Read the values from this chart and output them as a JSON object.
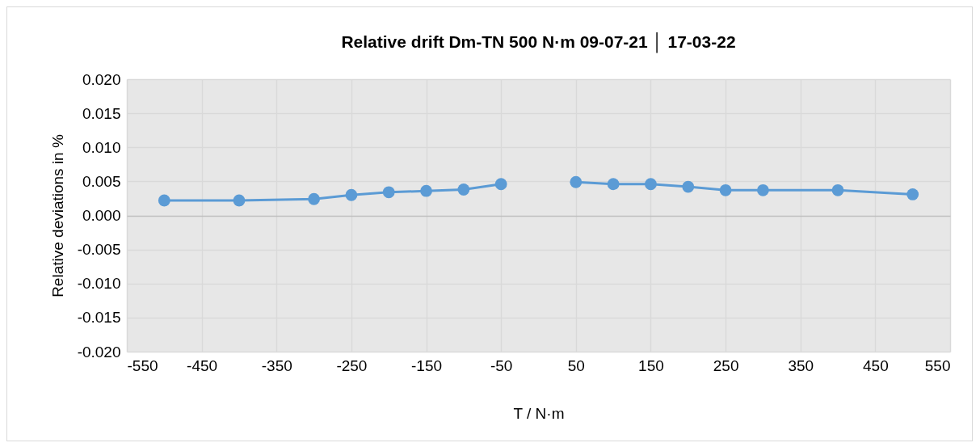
{
  "chart_data": {
    "type": "line",
    "title": "Relative drift Dm-TN 500 N·m 09-07-21 │ 17-03-22",
    "xlabel": "T / N·m",
    "ylabel": "Relative deviations in %",
    "x": [
      -500,
      -400,
      -300,
      -250,
      -200,
      -150,
      -100,
      -50,
      0,
      50,
      100,
      150,
      200,
      250,
      300,
      400,
      500
    ],
    "series": [
      {
        "color": "#5b9bd5",
        "values": [
          0.0022,
          0.0022,
          0.0024,
          0.003,
          0.0034,
          0.0036,
          0.0038,
          0.0046,
          null,
          0.0049,
          0.0046,
          0.0046,
          0.0042,
          0.0037,
          0.0037,
          0.0037,
          0.0031
        ]
      }
    ],
    "xlim": [
      -550,
      550
    ],
    "xticks": [
      -550,
      -450,
      -350,
      -250,
      -150,
      -50,
      50,
      150,
      250,
      350,
      450,
      550
    ],
    "ylim": [
      -0.02,
      0.02
    ],
    "yticks": [
      {
        "value": -0.02,
        "label": "-0.020"
      },
      -0.015,
      {
        "value": -0.01,
        "label": "-0.010"
      },
      -0.005,
      {
        "value": 0,
        "label": "0.000"
      },
      0.005,
      {
        "value": 0.01,
        "label": "0.010"
      },
      0.015,
      {
        "value": 0.02,
        "label": "0.020"
      }
    ],
    "grid": true,
    "marker": "circle",
    "line_style": "solid"
  }
}
